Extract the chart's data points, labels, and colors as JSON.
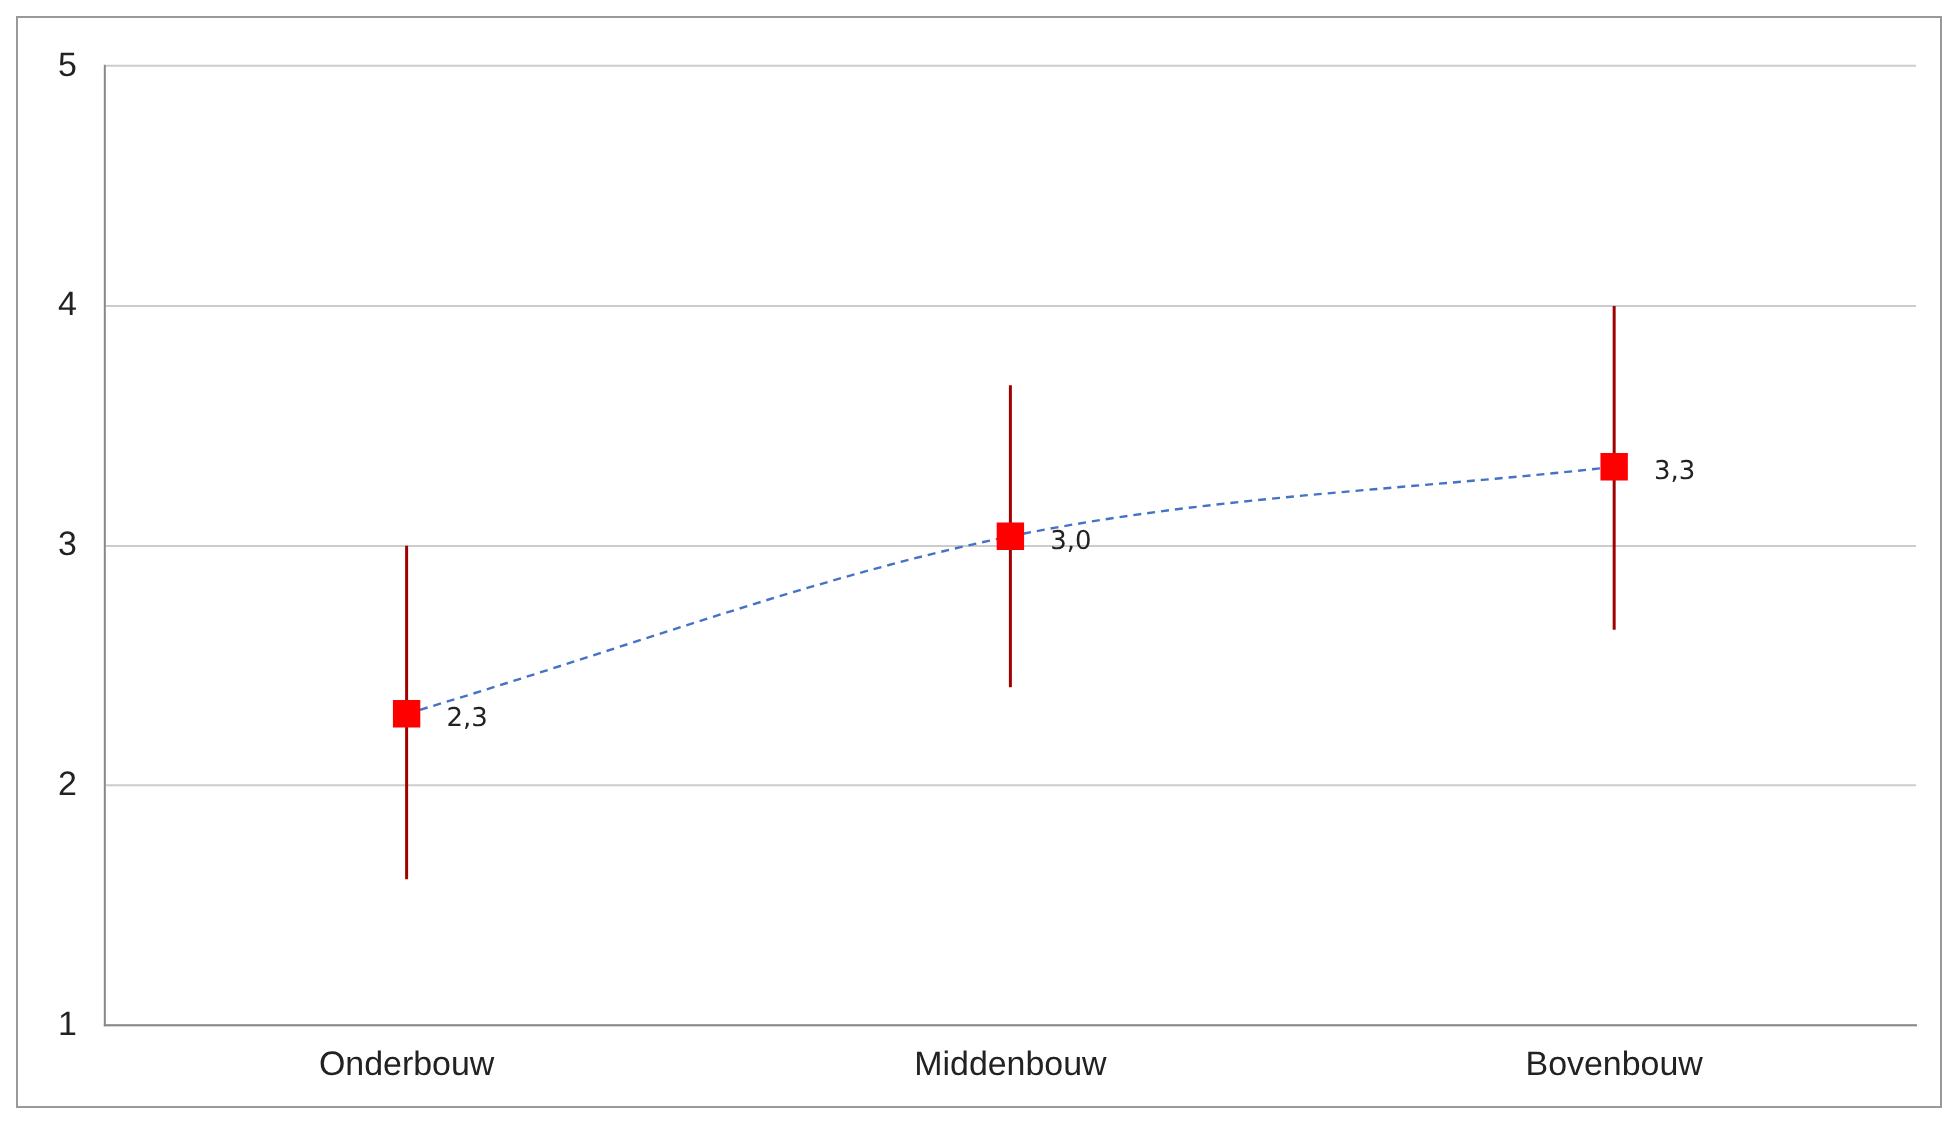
{
  "chart_data": {
    "type": "scatter",
    "categories": [
      "Onderbouw",
      "Middenbouw",
      "Bovenbouw"
    ],
    "ylim": [
      1,
      5
    ],
    "yticks": [
      1,
      2,
      3,
      4,
      5
    ],
    "grid": "y",
    "legend": false,
    "series": [
      {
        "type": "line",
        "color": "#4472c4",
        "line_style": "dashed",
        "marker": "none",
        "values": [
          2.3,
          3.04,
          3.33
        ]
      },
      {
        "color": "#ff0000",
        "marker": "square",
        "values": [
          2.3,
          3.04,
          3.33
        ],
        "errors": [
          [
            1.61,
            3.0
          ],
          [
            2.41,
            3.67
          ],
          [
            2.65,
            4.0
          ]
        ],
        "value_labels": [
          "2,3",
          "3,0",
          "3,3"
        ]
      }
    ]
  }
}
